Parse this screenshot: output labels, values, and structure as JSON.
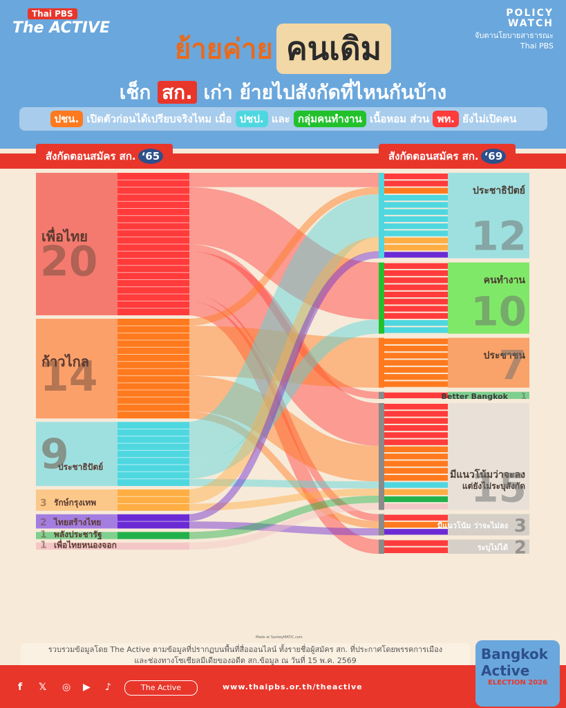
{
  "header": {
    "brand_top": "Thai PBS",
    "brand_main": "The ACTIVE",
    "pw_line1": "POLICY",
    "pw_line2": "WATCH",
    "pw_sub": "จับตานโยบายสาธารณะ",
    "pw_brand": "Thai PBS",
    "title_a": "ย้ายค่าย",
    "title_b": "คนเดิม",
    "subtitle_a": "เช็ก",
    "subtitle_sk": "สก.",
    "subtitle_b": "เก่า ย้ายไปสังกัดที่ไหนกันบ้าง",
    "tag1": "ปชน.",
    "tag1_text": "เปิดตัวก่อนได้เปรียบจริงไหม เมื่อ",
    "tag2": "ปชป.",
    "tag2_text": "และ",
    "tag3": "กลุ่มคนทำงาน",
    "tag3_text": "เนื้อหอม ส่วน",
    "tag4": "พท.",
    "tag4_text": "ยังไม่เปิดคน"
  },
  "left_label": "สังกัดตอนสมัคร สก.",
  "left_year": "‘65",
  "right_label": "สังกัดตอนสมัคร สก.",
  "right_year": "‘69",
  "colors": {
    "pt": "#f47a6f",
    "pt_node": "#ff3b3b",
    "mfp": "#fca06a",
    "mfp_node": "#ff7a1e",
    "dp": "#9ee0df",
    "dp_node": "#4fd7e0",
    "rkt": "#fcc88a",
    "rkt_node": "#ffae44",
    "tst": "#a47de0",
    "tst_node": "#6b2bd4",
    "pcr": "#7fcf8f",
    "pcr_node": "#22b14c",
    "ptnc": "#f4c7c7",
    "ppl": "#f9a26a",
    "work": "#7fe868",
    "undecided": "#e9e1d8",
    "unspec": "#d5cfc8"
  },
  "made_with": "Made at SankeyMATIC.com",
  "footnote_a": "รวบรวมข้อมูลโดย The Active ตามข้อมูลที่ปรากฏบนพื้นที่สื่อออนไลน์ ทั้งรายชื่อผู้สมัคร สก. ที่ประกาศโดยพรรคการเมือง",
  "footnote_b": "และช่องทางโซเชียลมีเดียของอดีต สก.ข้อมูล ณ วันที่ 15 พ.ค. 2569",
  "footer": {
    "button": "The Active",
    "url": "www.thaipbs.or.th/theactive",
    "badge_a": "Bangkok Active",
    "badge_b": "ELECTION 2026"
  },
  "chart_data": {
    "type": "sankey",
    "title": "ย้ายค่ายคนเดิม",
    "left_nodes": [
      {
        "id": "pt",
        "name": "เพื่อไทย",
        "value": 20
      },
      {
        "id": "mfp",
        "name": "ก้าวไกล",
        "value": 14
      },
      {
        "id": "dp",
        "name": "ประชาธิปัตย์",
        "value": 9
      },
      {
        "id": "rkt",
        "name": "รักษ์กรุงเทพ",
        "value": 3
      },
      {
        "id": "tst",
        "name": "ไทยสร้างไทย",
        "value": 2
      },
      {
        "id": "pcr",
        "name": "พลังประชารัฐ",
        "value": 1
      },
      {
        "id": "ptnc",
        "name": "เพื่อไทยหนองจอก",
        "value": 1
      }
    ],
    "right_nodes": [
      {
        "id": "dp69",
        "name": "ประชาธิปัตย์",
        "value": 12
      },
      {
        "id": "work",
        "name": "คนทำงาน",
        "value": 10
      },
      {
        "id": "ppl",
        "name": "ประชาชน",
        "value": 7
      },
      {
        "id": "bb",
        "name": "Better Bangkok",
        "value": 1
      },
      {
        "id": "lean_unnamed",
        "name": "มีแนวโน้มว่าจะลง แต่ยังไม่ระบุสังกัด",
        "value": 15
      },
      {
        "id": "lean_no",
        "name": "มีแนวโน้ม ว่าจะไม่ลง",
        "value": 3
      },
      {
        "id": "unspec",
        "name": "ระบุไม่ได้",
        "value": 2
      }
    ],
    "flows": [
      {
        "from": "pt",
        "to": "dp69",
        "value": 2
      },
      {
        "from": "pt",
        "to": "work",
        "value": 8
      },
      {
        "from": "pt",
        "to": "bb",
        "value": 1
      },
      {
        "from": "pt",
        "to": "lean_unnamed",
        "value": 6
      },
      {
        "from": "pt",
        "to": "lean_no",
        "value": 1
      },
      {
        "from": "pt",
        "to": "unspec",
        "value": 2
      },
      {
        "from": "mfp",
        "to": "dp69",
        "value": 1
      },
      {
        "from": "mfp",
        "to": "ppl",
        "value": 7
      },
      {
        "from": "mfp",
        "to": "lean_unnamed",
        "value": 5
      },
      {
        "from": "mfp",
        "to": "lean_no",
        "value": 1
      },
      {
        "from": "dp",
        "to": "dp69",
        "value": 6
      },
      {
        "from": "dp",
        "to": "work",
        "value": 2
      },
      {
        "from": "dp",
        "to": "lean_unnamed",
        "value": 1
      },
      {
        "from": "rkt",
        "to": "dp69",
        "value": 2
      },
      {
        "from": "rkt",
        "to": "lean_unnamed",
        "value": 1
      },
      {
        "from": "tst",
        "to": "dp69",
        "value": 1
      },
      {
        "from": "tst",
        "to": "lean_no",
        "value": 1
      },
      {
        "from": "pcr",
        "to": "lean_unnamed",
        "value": 1
      },
      {
        "from": "ptnc",
        "to": "lean_unnamed",
        "value": 1
      }
    ]
  }
}
